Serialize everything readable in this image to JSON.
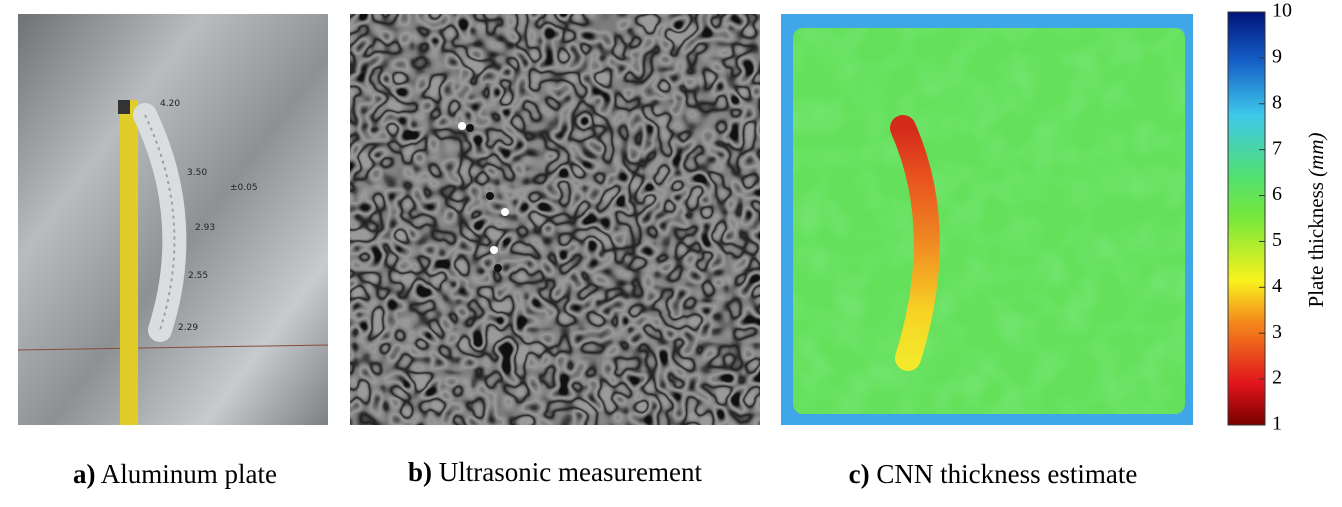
{
  "panels": [
    {
      "letter": "a)",
      "caption": "Aluminum plate",
      "annotations": [
        "4.20",
        "3.50",
        "±0.05",
        "2.93",
        "2.55",
        "2.29"
      ]
    },
    {
      "letter": "b)",
      "caption": "Ultrasonic measurement"
    },
    {
      "letter": "c)",
      "caption": "CNN thickness estimate"
    }
  ],
  "colorbar": {
    "label": "Plate thickness",
    "unit": "(mm)",
    "lim": [
      1,
      10
    ],
    "ticks": [
      1,
      2,
      3,
      4,
      5,
      6,
      7,
      8,
      9,
      10
    ]
  }
}
